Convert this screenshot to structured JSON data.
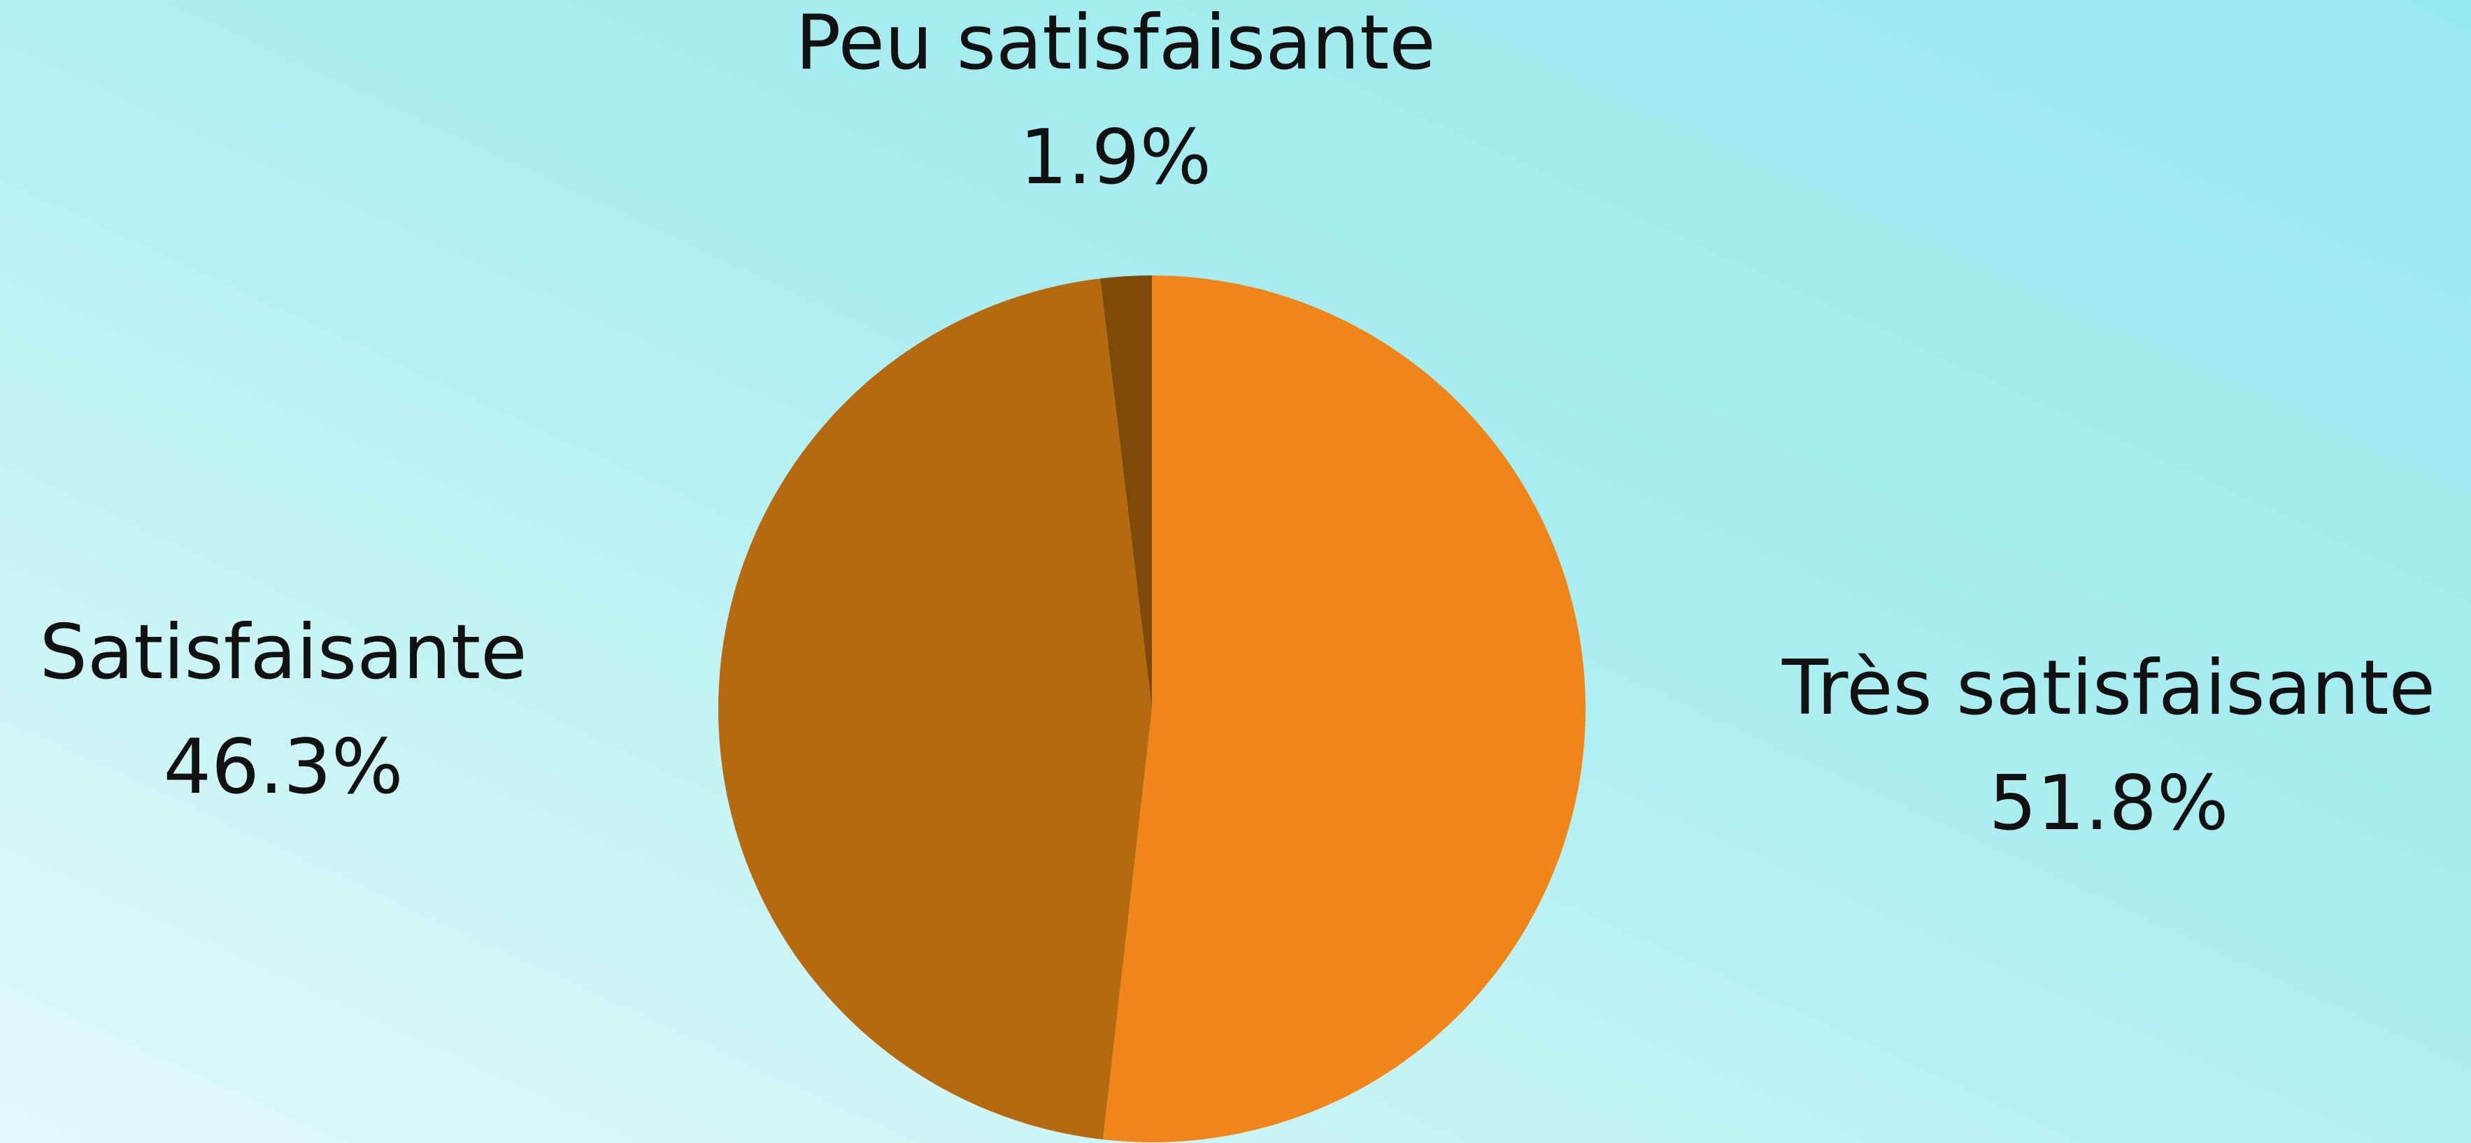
{
  "chart_data": {
    "type": "pie",
    "categories": [
      "Très satisfaisante",
      "Satisfaisante",
      "Peu satisfaisante"
    ],
    "values": [
      51.8,
      46.3,
      1.9
    ],
    "value_labels": [
      "51.8%",
      "46.3%",
      "1.9%"
    ],
    "colors": [
      "#f0861a",
      "#b56a10",
      "#7d4a0a"
    ]
  }
}
